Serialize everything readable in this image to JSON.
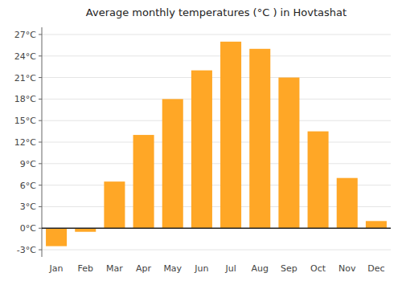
{
  "chart_data": {
    "type": "bar",
    "title": "Average monthly temperatures (°C ) in Hovtashat",
    "categories": [
      "Jan",
      "Feb",
      "Mar",
      "Apr",
      "May",
      "Jun",
      "Jul",
      "Aug",
      "Sep",
      "Oct",
      "Nov",
      "Dec"
    ],
    "values": [
      -2.5,
      -0.5,
      6.5,
      13.0,
      18.0,
      22.0,
      26.0,
      25.0,
      21.0,
      13.5,
      7.0,
      1.0
    ],
    "color": "#FFA726",
    "ylim": [
      -4,
      28
    ],
    "yticks": [
      {
        "value": -3,
        "label": "-3°C"
      },
      {
        "value": 0,
        "label": "0°C"
      },
      {
        "value": 3,
        "label": "3°C"
      },
      {
        "value": 6,
        "label": "6°C"
      },
      {
        "value": 9,
        "label": "9°C"
      },
      {
        "value": 12,
        "label": "12°C"
      },
      {
        "value": 15,
        "label": "15°C"
      },
      {
        "value": 18,
        "label": "18°C"
      },
      {
        "value": 21,
        "label": "21°C"
      },
      {
        "value": 24,
        "label": "24°C"
      },
      {
        "value": 27,
        "label": "27°C"
      }
    ],
    "grid": true
  }
}
